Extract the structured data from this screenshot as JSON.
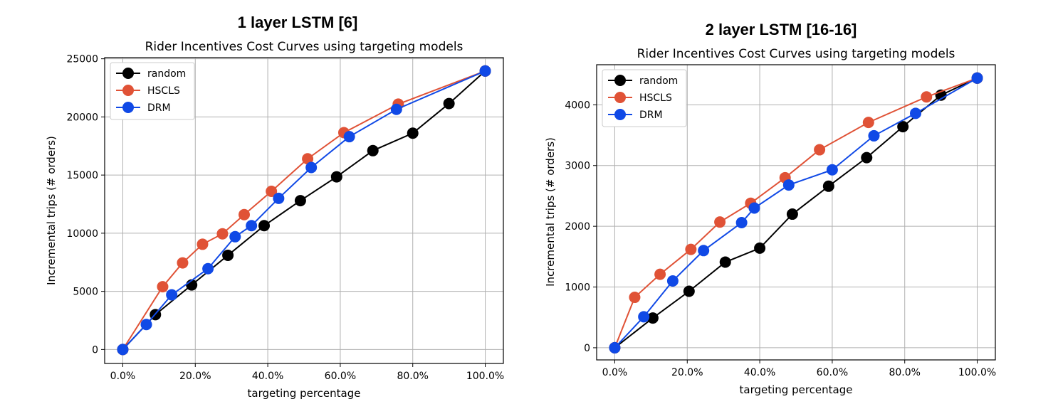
{
  "chart_data": [
    {
      "type": "line",
      "suptitle": "1 layer LSTM [6]",
      "title": "Rider Incentives Cost Curves using targeting models",
      "xlabel": "targeting percentage",
      "ylabel": "Incremental trips (# orders)",
      "xlim": [
        -0.05,
        1.05
      ],
      "ylim": [
        -1200,
        25100
      ],
      "xticks": [
        0,
        0.2,
        0.4,
        0.6,
        0.8,
        1.0
      ],
      "xtick_labels": [
        "0.0%",
        "20.0%",
        "40.0%",
        "60.0%",
        "80.0%",
        "100.0%"
      ],
      "yticks": [
        0,
        5000,
        10000,
        15000,
        20000,
        25000
      ],
      "ytick_labels": [
        "0",
        "5000",
        "10000",
        "15000",
        "20000",
        "25000"
      ],
      "grid": true,
      "legend_position": "top-left",
      "series": [
        {
          "name": "random",
          "color": "#000000",
          "x": [
            0,
            0.09,
            0.19,
            0.29,
            0.39,
            0.49,
            0.59,
            0.69,
            0.8,
            0.9,
            1.0
          ],
          "y": [
            0,
            3000,
            5550,
            8100,
            10650,
            12800,
            14850,
            17100,
            18600,
            21150,
            23950
          ]
        },
        {
          "name": "HSCLS",
          "color": "#e05236",
          "x": [
            0,
            0.11,
            0.165,
            0.22,
            0.275,
            0.335,
            0.41,
            0.51,
            0.61,
            0.76,
            1.0
          ],
          "y": [
            0,
            5400,
            7450,
            9050,
            9950,
            11600,
            13600,
            16400,
            18650,
            21100,
            23950
          ]
        },
        {
          "name": "DRM",
          "color": "#1049e6",
          "x": [
            0,
            0.065,
            0.135,
            0.235,
            0.31,
            0.355,
            0.43,
            0.52,
            0.625,
            0.755,
            1.0
          ],
          "y": [
            0,
            2150,
            4700,
            6950,
            9700,
            10650,
            13000,
            15650,
            18300,
            20650,
            23950
          ]
        }
      ]
    },
    {
      "type": "line",
      "suptitle": "2 layer LSTM [16-16]",
      "title": "Rider Incentives Cost Curves using targeting models",
      "xlabel": "targeting percentage",
      "ylabel": "Incremental trips (# orders)",
      "xlim": [
        -0.05,
        1.05
      ],
      "ylim": [
        -200,
        4660
      ],
      "xticks": [
        0,
        0.2,
        0.4,
        0.6,
        0.8,
        1.0
      ],
      "xtick_labels": [
        "0.0%",
        "20.0%",
        "40.0%",
        "60.0%",
        "80.0%",
        "100.0%"
      ],
      "yticks": [
        0,
        1000,
        2000,
        3000,
        4000
      ],
      "ytick_labels": [
        "0",
        "1000",
        "2000",
        "3000",
        "4000"
      ],
      "grid": true,
      "legend_position": "top-left",
      "series": [
        {
          "name": "random",
          "color": "#000000",
          "x": [
            0,
            0.105,
            0.205,
            0.305,
            0.4,
            0.49,
            0.59,
            0.695,
            0.795,
            0.9,
            1.0
          ],
          "y": [
            0,
            490,
            930,
            1410,
            1640,
            2200,
            2660,
            3130,
            3640,
            4160,
            4440
          ]
        },
        {
          "name": "HSCLS",
          "color": "#e05236",
          "x": [
            0,
            0.055,
            0.125,
            0.21,
            0.29,
            0.375,
            0.47,
            0.565,
            0.7,
            0.86,
            1.0
          ],
          "y": [
            0,
            830,
            1210,
            1620,
            2070,
            2380,
            2800,
            3260,
            3710,
            4130,
            4440
          ]
        },
        {
          "name": "DRM",
          "color": "#1049e6",
          "x": [
            0,
            0.08,
            0.16,
            0.245,
            0.35,
            0.385,
            0.48,
            0.6,
            0.715,
            0.83,
            1.0
          ],
          "y": [
            0,
            510,
            1100,
            1600,
            2060,
            2300,
            2680,
            2930,
            3490,
            3860,
            4440
          ]
        }
      ]
    }
  ]
}
